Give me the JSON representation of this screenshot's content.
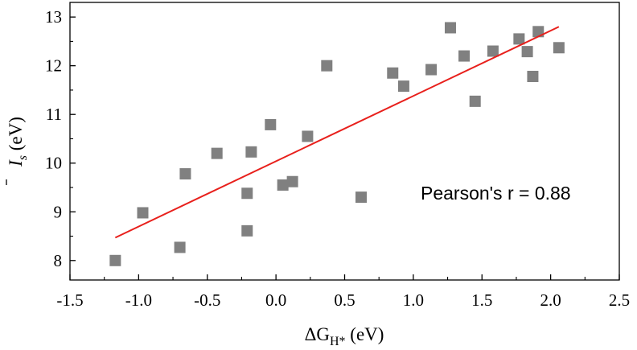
{
  "chart_data": {
    "type": "scatter",
    "xlabel": {
      "prefix": "ΔG",
      "sub": "H*",
      "unit": " (eV)"
    },
    "ylabel": {
      "base": "I",
      "sub": "s",
      "unit": " (eV)"
    },
    "xlim": [
      -1.5,
      2.5
    ],
    "ylim": [
      7.6,
      13.3
    ],
    "xticks": [
      -1.5,
      -1.0,
      -0.5,
      0.0,
      0.5,
      1.0,
      1.5,
      2.0,
      2.5
    ],
    "xtick_labels": [
      "-1.5",
      "-1.0",
      "-0.5",
      "0.0",
      "0.5",
      "1.0",
      "1.5",
      "2.0",
      "2.5"
    ],
    "yticks": [
      8,
      9,
      10,
      11,
      12,
      13
    ],
    "ytick_labels": [
      "8",
      "9",
      "10",
      "11",
      "12",
      "13"
    ],
    "grid": false,
    "marker_color": "#808080",
    "fit_color": "#e8201c",
    "series": [
      {
        "points": [
          [
            -1.17,
            8.0
          ],
          [
            -0.97,
            8.98
          ],
          [
            -0.7,
            8.27
          ],
          [
            -0.66,
            9.78
          ],
          [
            -0.43,
            10.2
          ],
          [
            -0.21,
            9.38
          ],
          [
            -0.21,
            8.61
          ],
          [
            -0.18,
            10.23
          ],
          [
            -0.04,
            10.79
          ],
          [
            0.05,
            9.55
          ],
          [
            0.12,
            9.62
          ],
          [
            0.23,
            10.55
          ],
          [
            0.37,
            12.0
          ],
          [
            0.62,
            9.3
          ],
          [
            0.85,
            11.85
          ],
          [
            0.93,
            11.58
          ],
          [
            1.13,
            11.92
          ],
          [
            1.27,
            12.78
          ],
          [
            1.37,
            12.2
          ],
          [
            1.45,
            11.27
          ],
          [
            1.58,
            12.3
          ],
          [
            1.77,
            12.55
          ],
          [
            1.83,
            12.29
          ],
          [
            1.87,
            11.78
          ],
          [
            1.91,
            12.7
          ],
          [
            2.06,
            12.37
          ]
        ]
      }
    ],
    "fit_line": {
      "x": [
        -1.17,
        2.06
      ],
      "y": [
        8.47,
        12.8
      ]
    },
    "annotation": "Pearson's r = 0.88"
  }
}
